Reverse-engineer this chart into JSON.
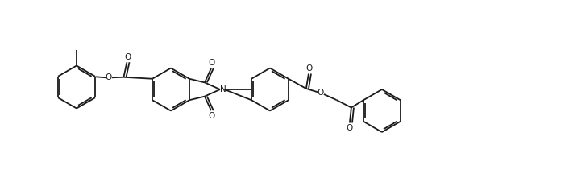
{
  "background": "#ffffff",
  "line_color": "#1a1a1a",
  "line_width": 1.3,
  "dbo": 0.022,
  "fig_width": 7.06,
  "fig_height": 2.16,
  "dpi": 100,
  "xlim": [
    0,
    7.06
  ],
  "ylim": [
    0,
    2.16
  ]
}
